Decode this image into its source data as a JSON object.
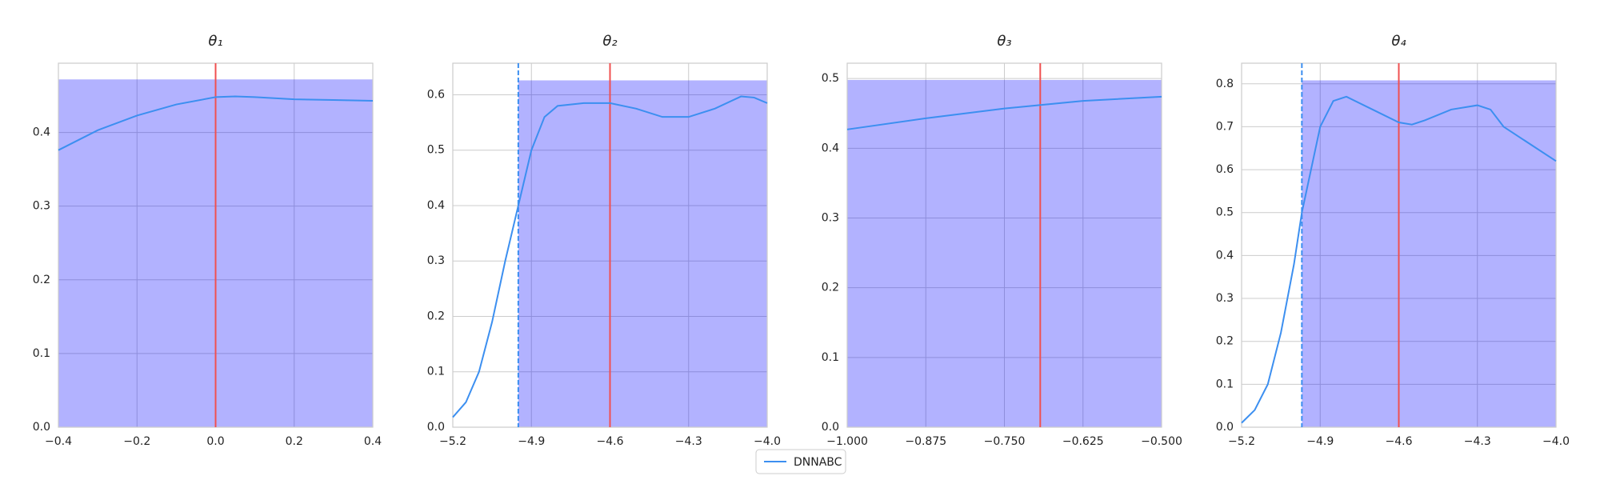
{
  "chart_data": [
    {
      "type": "line",
      "title": "θ₁",
      "legend": "lower center",
      "x": [
        -0.4,
        -0.3,
        -0.2,
        -0.1,
        0,
        0.05,
        0.1,
        0.2,
        0.3,
        0.4
      ],
      "series": [
        {
          "name": "DNNABC",
          "color": "#3c8ff0",
          "values": [
            0.376,
            0.403,
            0.423,
            0.438,
            0.448,
            0.449,
            0.448,
            0.445,
            0.444,
            0.443
          ]
        }
      ],
      "xlim": [
        -0.4,
        0.4
      ],
      "ylim": [
        0,
        0.494
      ],
      "xticks": [
        {
          "value": -0.4,
          "label": "−0.4"
        },
        {
          "value": -0.2,
          "label": "−0.2"
        },
        {
          "value": 0,
          "label": "0.0"
        },
        0.2,
        0.4
      ],
      "yticks": [
        {
          "value": 0,
          "label": "0.0"
        },
        0.1,
        0.2,
        0.3,
        0.4
      ],
      "grid": true,
      "shade": {
        "x0": -0.4,
        "x1": 0.4,
        "height": 0.472,
        "color": "#0000ff",
        "alpha": 0.3
      },
      "bound_line": false,
      "true_value": 0,
      "true_color": "#f05050"
    },
    {
      "type": "line",
      "title": "θ₂",
      "x": [
        -5.2,
        -5.15,
        -5.1,
        -5.05,
        -5.0,
        -4.95,
        -4.9,
        -4.85,
        -4.8,
        -4.7,
        -4.6,
        -4.5,
        -4.4,
        -4.3,
        -4.2,
        -4.1,
        -4.05,
        -4.0
      ],
      "series": [
        {
          "color": "#3c8ff0",
          "values": [
            0.018,
            0.045,
            0.1,
            0.19,
            0.3,
            0.4,
            0.5,
            0.56,
            0.58,
            0.585,
            0.585,
            0.575,
            0.56,
            0.56,
            0.575,
            0.597,
            0.595,
            0.585
          ]
        }
      ],
      "xlim": [
        -5.2,
        -4.0
      ],
      "ylim": [
        0,
        0.657
      ],
      "xticks": [
        {
          "value": -5.2,
          "label": "−5.2"
        },
        {
          "value": -4.9,
          "label": "−4.9"
        },
        {
          "value": -4.6,
          "label": "−4.6"
        },
        {
          "value": -4.3,
          "label": "−4.3"
        },
        {
          "value": -4.0,
          "label": "−4.0"
        }
      ],
      "yticks": [
        {
          "value": 0,
          "label": "0.0"
        },
        0.1,
        0.2,
        0.3,
        0.4,
        0.5,
        0.6
      ],
      "grid": true,
      "shade": {
        "x0": -4.95,
        "x1": -4.0,
        "height": 0.626,
        "color": "#0000ff",
        "alpha": 0.3
      },
      "bound_line": true,
      "true_value": -4.6,
      "true_color": "#f05050"
    },
    {
      "type": "line",
      "title": "θ₃",
      "x": [
        -1.0,
        -0.875,
        -0.75,
        -0.625,
        -0.5
      ],
      "series": [
        {
          "color": "#3c8ff0",
          "values": [
            0.427,
            0.443,
            0.457,
            0.468,
            0.474
          ]
        }
      ],
      "xlim": [
        -1.0,
        -0.5
      ],
      "ylim": [
        0,
        0.522
      ],
      "xticks": [
        {
          "value": -1.0,
          "label": "−1.000"
        },
        {
          "value": -0.875,
          "label": "−0.875"
        },
        {
          "value": -0.75,
          "label": "−0.750"
        },
        {
          "value": -0.625,
          "label": "−0.625"
        },
        {
          "value": -0.5,
          "label": "−0.500"
        }
      ],
      "yticks": [
        {
          "value": 0,
          "label": "0.0"
        },
        0.1,
        0.2,
        0.3,
        0.4,
        0.5
      ],
      "grid": true,
      "shade": {
        "x0": -1.0,
        "x1": -0.5,
        "height": 0.498,
        "color": "#0000ff",
        "alpha": 0.3
      },
      "bound_line": false,
      "true_value": -0.693,
      "true_color": "#f05050"
    },
    {
      "type": "line",
      "title": "θ₄",
      "x": [
        -5.2,
        -5.15,
        -5.1,
        -5.05,
        -5.0,
        -4.97,
        -4.9,
        -4.85,
        -4.8,
        -4.7,
        -4.6,
        -4.55,
        -4.5,
        -4.4,
        -4.3,
        -4.25,
        -4.2,
        -4.1,
        -4.0
      ],
      "series": [
        {
          "color": "#3c8ff0",
          "values": [
            0.01,
            0.04,
            0.1,
            0.22,
            0.38,
            0.5,
            0.7,
            0.76,
            0.77,
            0.74,
            0.71,
            0.705,
            0.715,
            0.74,
            0.75,
            0.74,
            0.7,
            0.66,
            0.62
          ]
        }
      ],
      "xlim": [
        -5.2,
        -4.0
      ],
      "ylim": [
        0,
        0.848
      ],
      "xticks": [
        {
          "value": -5.2,
          "label": "−5.2"
        },
        {
          "value": -4.9,
          "label": "−4.9"
        },
        {
          "value": -4.6,
          "label": "−4.6"
        },
        {
          "value": -4.3,
          "label": "−4.3"
        },
        {
          "value": -4.0,
          "label": "−4.0"
        }
      ],
      "yticks": [
        {
          "value": 0,
          "label": "0.0"
        },
        0.1,
        0.2,
        0.3,
        0.4,
        0.5,
        0.6,
        0.7,
        0.8
      ],
      "grid": true,
      "shade": {
        "x0": -4.97,
        "x1": -4.0,
        "height": 0.808,
        "color": "#0000ff",
        "alpha": 0.3
      },
      "bound_line": true,
      "true_value": -4.6,
      "true_color": "#f05050"
    }
  ]
}
